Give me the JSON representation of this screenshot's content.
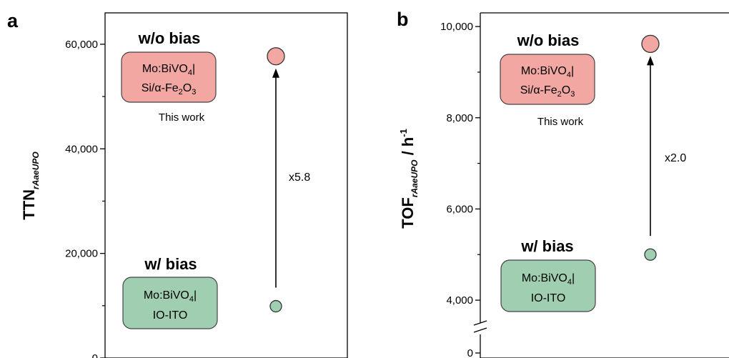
{
  "chart_data": [
    {
      "panel_label": "a",
      "type": "scatter",
      "ylabel": "TTN",
      "ylabel_sub": "rAaeUPO",
      "ylim": [
        0,
        66000
      ],
      "y_ticks": [
        {
          "value": 0,
          "label": "0"
        },
        {
          "value": 20000,
          "label": "20,000"
        },
        {
          "value": 40000,
          "label": "40,000"
        },
        {
          "value": 60000,
          "label": "60,000"
        }
      ],
      "points": [
        {
          "condition": "w/o bias",
          "value": 57700,
          "color": "#f2a7a3"
        },
        {
          "condition": "w/ bias",
          "value": 9900,
          "color": "#9fcfb0"
        }
      ],
      "fold_label": "x5.8",
      "annotations": {
        "top_title": "w/o bias",
        "top_box_line1": "Mo:BiVO",
        "top_box_line1_sub": "4",
        "top_box_line1_tail": "|",
        "top_box_line2_a": "Si/α-Fe",
        "top_box_line2_sub1": "2",
        "top_box_line2_b": "O",
        "top_box_line2_sub2": "3",
        "note": "This work",
        "bottom_title": "w/ bias",
        "bottom_box_line1": "Mo:BiVO",
        "bottom_box_line1_sub": "4",
        "bottom_box_line1_tail": "|",
        "bottom_box_line2": "IO-ITO"
      }
    },
    {
      "panel_label": "b",
      "type": "scatter",
      "ylabel": "TOF",
      "ylabel_sub": "rAaeUPO",
      "ylabel_unit": " / h",
      "ylabel_unit_sup": "-1",
      "ylim": [
        0,
        10300
      ],
      "broken_axis": true,
      "y_ticks": [
        {
          "value": 0,
          "label": "0"
        },
        {
          "value": 4000,
          "label": "4,000"
        },
        {
          "value": 6000,
          "label": "6,000"
        },
        {
          "value": 8000,
          "label": "8,000"
        },
        {
          "value": 10000,
          "label": "10,000"
        }
      ],
      "points": [
        {
          "condition": "w/o bias",
          "value": 9620,
          "color": "#f2a7a3"
        },
        {
          "condition": "w/ bias",
          "value": 5000,
          "color": "#9fcfb0"
        }
      ],
      "fold_label": "x2.0",
      "annotations": {
        "top_title": "w/o bias",
        "top_box_line1": "Mo:BiVO",
        "top_box_line1_sub": "4",
        "top_box_line1_tail": "|",
        "top_box_line2_a": "Si/α-Fe",
        "top_box_line2_sub1": "2",
        "top_box_line2_b": "O",
        "top_box_line2_sub2": "3",
        "note": "This work",
        "bottom_title": "w/ bias",
        "bottom_box_line1": "Mo:BiVO",
        "bottom_box_line1_sub": "4",
        "bottom_box_line1_tail": "|",
        "bottom_box_line2": "IO-ITO"
      }
    }
  ],
  "colors": {
    "pink_fill": "#f2a7a3",
    "green_fill": "#9fcfb0",
    "stroke": "#333333"
  }
}
